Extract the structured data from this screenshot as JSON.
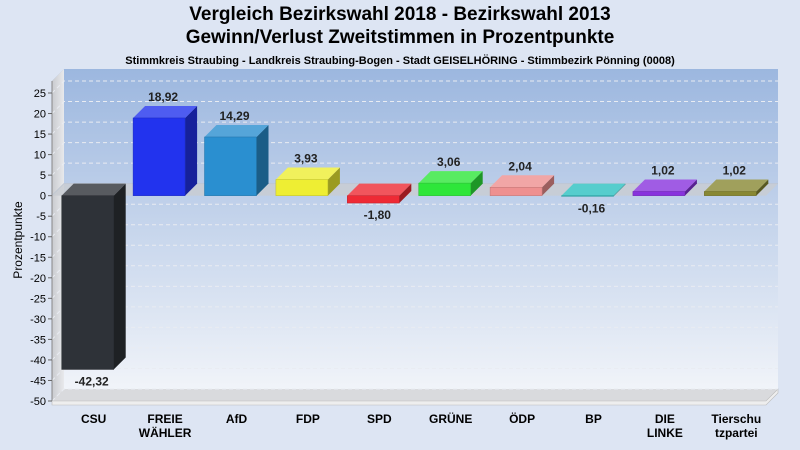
{
  "title": "Vergleich Bezirkswahl 2018 - Bezirkswahl 2013",
  "subtitle": "Gewinn/Verlust Zweitstimmen in Prozentpunkte",
  "region": "Stimmkreis Straubing - Landkreis Straubing-Bogen - Stadt GEISELHÖRING - Stimmbezirk Pönning (0008)",
  "chart_data": {
    "type": "bar",
    "title": "Vergleich Bezirkswahl 2018 - Bezirkswahl 2013",
    "subtitle": "Gewinn/Verlust Zweitstimmen in Prozentpunkte",
    "ylabel": "Prozentpunkte",
    "xlabel": "",
    "ylim": [
      -50,
      25
    ],
    "yticks": [
      25,
      20,
      15,
      10,
      5,
      0,
      -5,
      -10,
      -15,
      -20,
      -25,
      -30,
      -35,
      -40,
      -45,
      -50
    ],
    "grid": true,
    "categories": [
      [
        "CSU"
      ],
      [
        "FREIE",
        "WÄHLER"
      ],
      [
        "AfD"
      ],
      [
        "FDP"
      ],
      [
        "SPD"
      ],
      [
        "GRÜNE"
      ],
      [
        "ÖDP"
      ],
      [
        "BP"
      ],
      [
        "DIE",
        "LINKE"
      ],
      [
        "Tierschu",
        "tzpartei"
      ]
    ],
    "values": [
      -42.32,
      18.92,
      14.29,
      3.93,
      -1.8,
      3.06,
      2.04,
      -0.16,
      1.02,
      1.02
    ],
    "labels": [
      "-42,32",
      "18,92",
      "14,29",
      "3,93",
      "-1,80",
      "3,06",
      "2,04",
      "-0,16",
      "1,02",
      "1,02"
    ],
    "colors": [
      "#2e3238",
      "#2233ee",
      "#2a8fd0",
      "#eeee33",
      "#ee2a35",
      "#2ee63a",
      "#ee9090",
      "#2cc0c0",
      "#8833dd",
      "#888833"
    ]
  }
}
